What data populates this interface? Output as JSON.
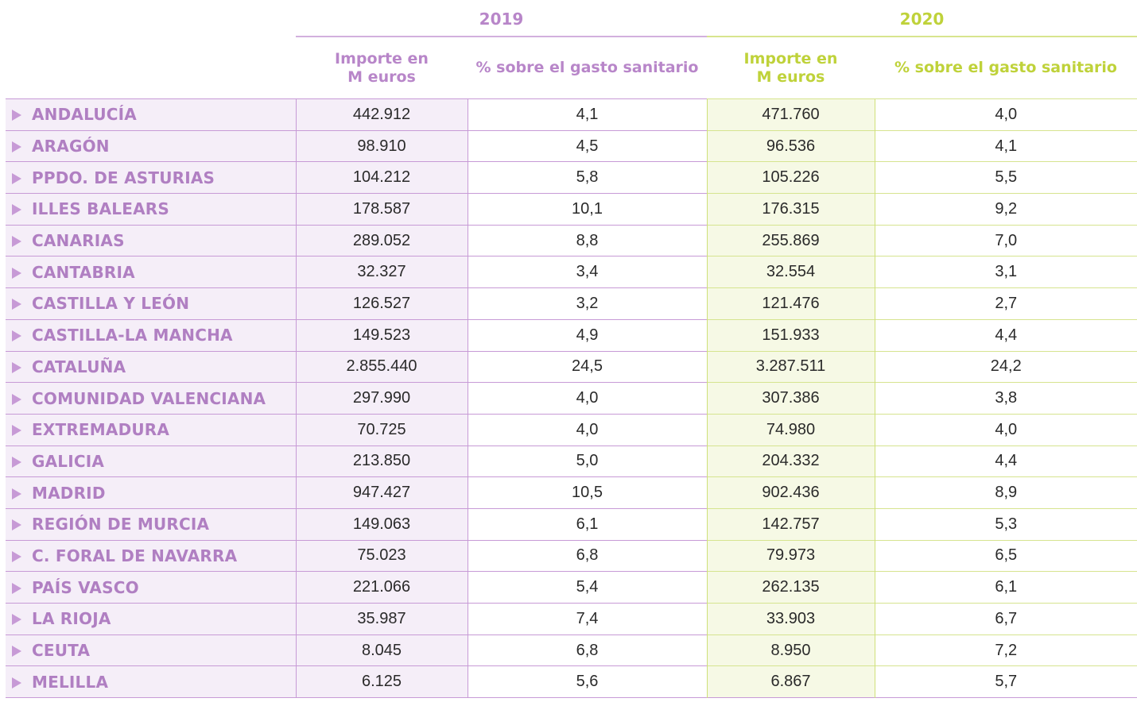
{
  "years": {
    "y2019": "2019",
    "y2020": "2020"
  },
  "headers": {
    "importe_line1": "Importe en",
    "importe_line2": "M euros",
    "porcentaje": "% sobre el gasto sanitario"
  },
  "colors": {
    "purple_text": "#b886c9",
    "purple_line": "#c79ad6",
    "purple_fill": "#f5eef8",
    "green_text": "#bfd23a",
    "green_line": "#cfe07a",
    "green_fill": "#f6f9e5"
  },
  "row_icon": "triangle-right-icon",
  "rows": [
    {
      "name": "ANDALUCÍA",
      "imp2019": "442.912",
      "pct2019": "4,1",
      "imp2020": "471.760",
      "pct2020": "4,0"
    },
    {
      "name": "ARAGÓN",
      "imp2019": "98.910",
      "pct2019": "4,5",
      "imp2020": "96.536",
      "pct2020": "4,1"
    },
    {
      "name": "PPDO. DE ASTURIAS",
      "imp2019": "104.212",
      "pct2019": "5,8",
      "imp2020": "105.226",
      "pct2020": "5,5"
    },
    {
      "name": "ILLES BALEARS",
      "imp2019": "178.587",
      "pct2019": "10,1",
      "imp2020": "176.315",
      "pct2020": "9,2"
    },
    {
      "name": "CANARIAS",
      "imp2019": "289.052",
      "pct2019": "8,8",
      "imp2020": "255.869",
      "pct2020": "7,0"
    },
    {
      "name": "CANTABRIA",
      "imp2019": "32.327",
      "pct2019": "3,4",
      "imp2020": "32.554",
      "pct2020": "3,1"
    },
    {
      "name": "CASTILLA Y LEÓN",
      "imp2019": "126.527",
      "pct2019": "3,2",
      "imp2020": "121.476",
      "pct2020": "2,7"
    },
    {
      "name": "CASTILLA-LA MANCHA",
      "imp2019": "149.523",
      "pct2019": "4,9",
      "imp2020": "151.933",
      "pct2020": "4,4"
    },
    {
      "name": "CATALUÑA",
      "imp2019": "2.855.440",
      "pct2019": "24,5",
      "imp2020": "3.287.511",
      "pct2020": "24,2"
    },
    {
      "name": "COMUNIDAD VALENCIANA",
      "imp2019": "297.990",
      "pct2019": "4,0",
      "imp2020": "307.386",
      "pct2020": "3,8"
    },
    {
      "name": "EXTREMADURA",
      "imp2019": "70.725",
      "pct2019": "4,0",
      "imp2020": "74.980",
      "pct2020": "4,0"
    },
    {
      "name": "GALICIA",
      "imp2019": "213.850",
      "pct2019": "5,0",
      "imp2020": "204.332",
      "pct2020": "4,4"
    },
    {
      "name": "MADRID",
      "imp2019": "947.427",
      "pct2019": "10,5",
      "imp2020": "902.436",
      "pct2020": "8,9"
    },
    {
      "name": "REGIÓN DE MURCIA",
      "imp2019": "149.063",
      "pct2019": "6,1",
      "imp2020": "142.757",
      "pct2020": "5,3"
    },
    {
      "name": "C. FORAL DE NAVARRA",
      "imp2019": "75.023",
      "pct2019": "6,8",
      "imp2020": "79.973",
      "pct2020": "6,5"
    },
    {
      "name": "PAÍS VASCO",
      "imp2019": "221.066",
      "pct2019": "5,4",
      "imp2020": "262.135",
      "pct2020": "6,1"
    },
    {
      "name": "LA RIOJA",
      "imp2019": "35.987",
      "pct2019": "7,4",
      "imp2020": "33.903",
      "pct2020": "6,7"
    },
    {
      "name": "CEUTA",
      "imp2019": "8.045",
      "pct2019": "6,8",
      "imp2020": "8.950",
      "pct2020": "7,2"
    },
    {
      "name": "MELILLA",
      "imp2019": "6.125",
      "pct2019": "5,6",
      "imp2020": "6.867",
      "pct2020": "5,7"
    }
  ]
}
